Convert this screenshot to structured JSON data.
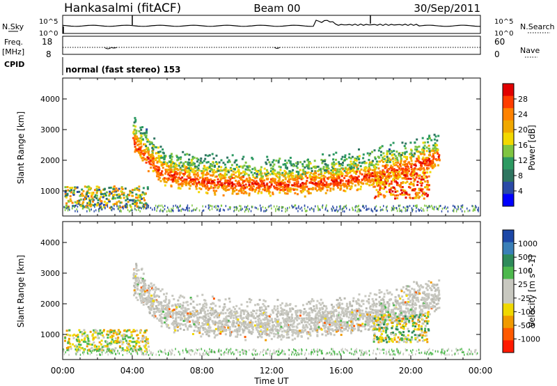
{
  "header": {
    "station": "Hankasalmi (fitACF)",
    "beam": "Beam 00",
    "date": "30/Sep/2011"
  },
  "panels": {
    "noise": {
      "left_label": "N.Sky",
      "left_ticks": [
        "10^5",
        "10^0"
      ],
      "right_ticks": [
        "10^5",
        "10^0"
      ],
      "right_label": "N.Search"
    },
    "freq": {
      "left_label": "Freq.",
      "left_unit": "[MHz]",
      "left_ticks": [
        "18",
        "8"
      ],
      "right_ticks": [
        "60",
        "0"
      ],
      "right_label": "Nave"
    },
    "cpid": {
      "label": "CPID",
      "text": "normal (fast stereo) 153"
    }
  },
  "chart_data": [
    {
      "type": "heatmap",
      "name": "power",
      "ylabel": "Slant Range [km]",
      "y_ticks": [
        "4000",
        "3000",
        "2000",
        "1000"
      ],
      "x_ticks": [
        "00:00",
        "04:00",
        "08:00",
        "12:00",
        "16:00",
        "20:00",
        "00:00"
      ],
      "colorbar": {
        "label": "Power [dB]",
        "ticks": [
          "28",
          "24",
          "20",
          "16",
          "12",
          "8",
          "4"
        ],
        "colors": [
          "#e10000",
          "#ff3d00",
          "#ff8200",
          "#f0a800",
          "#f2d800",
          "#7fc541",
          "#2d9a62",
          "#2f7560",
          "#2a4aa6",
          "#0000ff"
        ]
      }
    },
    {
      "type": "heatmap",
      "name": "velocity",
      "ylabel": "Slant Range [km]",
      "xlabel": "Time UT",
      "y_ticks": [
        "4000",
        "3000",
        "2000",
        "1000"
      ],
      "x_ticks": [
        "00:00",
        "04:00",
        "08:00",
        "12:00",
        "16:00",
        "20:00",
        "00:00"
      ],
      "colorbar": {
        "label": "Velocity [m s^-1]",
        "ticks": [
          "1000",
          "500",
          "100",
          "25",
          "-25",
          "-100",
          "-500",
          "-1000"
        ],
        "colors": [
          "#1c47a6",
          "#3a7fb7",
          "#2e8a5a",
          "#4db84d",
          "#c8c8c0",
          "#c8c8c0",
          "#f0d800",
          "#f09a00",
          "#ff5a00",
          "#ff1a00"
        ]
      }
    }
  ]
}
